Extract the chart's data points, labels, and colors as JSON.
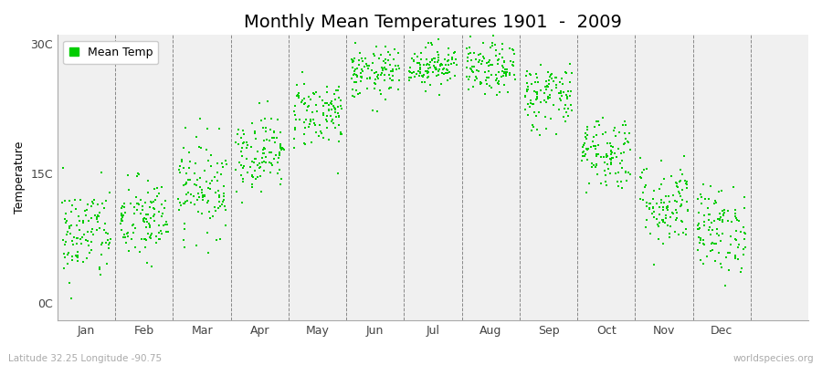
{
  "title": "Monthly Mean Temperatures 1901  -  2009",
  "ylabel": "Temperature",
  "footer_left": "Latitude 32.25 Longitude -90.75",
  "footer_right": "worldspecies.org",
  "ytick_labels": [
    "0C",
    "15C",
    "30C"
  ],
  "ytick_values": [
    0,
    15,
    30
  ],
  "ylim": [
    -2,
    31
  ],
  "xlim": [
    0,
    13
  ],
  "month_labels": [
    "Jan",
    "Feb",
    "Mar",
    "Apr",
    "May",
    "Jun",
    "Jul",
    "Aug",
    "Sep",
    "Oct",
    "Nov",
    "Dec"
  ],
  "month_centers": [
    0.5,
    1.5,
    2.5,
    3.5,
    4.5,
    5.5,
    6.5,
    7.5,
    8.5,
    9.5,
    10.5,
    11.5
  ],
  "month_boundaries": [
    0,
    1,
    2,
    3,
    4,
    5,
    6,
    7,
    8,
    9,
    10,
    11,
    12,
    13
  ],
  "marker_color": "#00cc00",
  "background_color": "#f0f0f0",
  "legend_label": "Mean Temp",
  "title_fontsize": 14,
  "label_fontsize": 9,
  "tick_fontsize": 9,
  "n_years": 109,
  "monthly_means": [
    8.0,
    9.5,
    13.5,
    17.5,
    22.0,
    26.5,
    27.5,
    27.0,
    24.0,
    17.5,
    11.5,
    8.5
  ],
  "monthly_stds": [
    2.8,
    2.5,
    2.8,
    2.2,
    2.0,
    1.5,
    1.2,
    1.5,
    2.0,
    2.2,
    2.5,
    2.5
  ],
  "random_seed": 42
}
